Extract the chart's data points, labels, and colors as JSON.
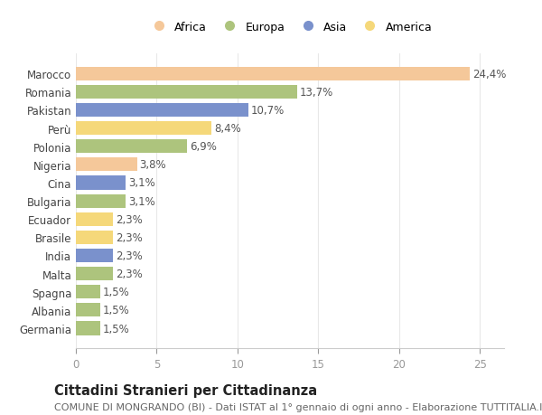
{
  "countries": [
    "Marocco",
    "Romania",
    "Pakistan",
    "Perù",
    "Polonia",
    "Nigeria",
    "Cina",
    "Bulgaria",
    "Ecuador",
    "Brasile",
    "India",
    "Malta",
    "Spagna",
    "Albania",
    "Germania"
  ],
  "values": [
    24.4,
    13.7,
    10.7,
    8.4,
    6.9,
    3.8,
    3.1,
    3.1,
    2.3,
    2.3,
    2.3,
    2.3,
    1.5,
    1.5,
    1.5
  ],
  "labels": [
    "24,4%",
    "13,7%",
    "10,7%",
    "8,4%",
    "6,9%",
    "3,8%",
    "3,1%",
    "3,1%",
    "2,3%",
    "2,3%",
    "2,3%",
    "2,3%",
    "1,5%",
    "1,5%",
    "1,5%"
  ],
  "colors": [
    "#f5c89a",
    "#adc47d",
    "#7a91cc",
    "#f5d87a",
    "#adc47d",
    "#f5c89a",
    "#7a91cc",
    "#adc47d",
    "#f5d87a",
    "#f5d87a",
    "#7a91cc",
    "#adc47d",
    "#adc47d",
    "#adc47d",
    "#adc47d"
  ],
  "legend_labels": [
    "Africa",
    "Europa",
    "Asia",
    "America"
  ],
  "legend_colors": [
    "#f5c89a",
    "#adc47d",
    "#7a91cc",
    "#f5d87a"
  ],
  "title": "Cittadini Stranieri per Cittadinanza",
  "subtitle": "COMUNE DI MONGRANDO (BI) - Dati ISTAT al 1° gennaio di ogni anno - Elaborazione TUTTITALIA.IT",
  "xlim": [
    0,
    26.5
  ],
  "xticks": [
    0,
    5,
    10,
    15,
    20,
    25
  ],
  "background_color": "#ffffff",
  "grid_color": "#e8e8e8",
  "bar_height": 0.75,
  "label_fontsize": 8.5,
  "title_fontsize": 10.5,
  "subtitle_fontsize": 8,
  "tick_fontsize": 8.5,
  "ytick_fontsize": 8.5
}
